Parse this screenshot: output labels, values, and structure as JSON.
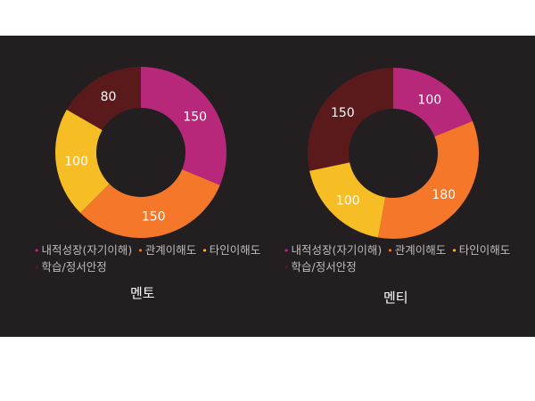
{
  "legend_labels": [
    "내적성장(자기이해)",
    "관계이해도",
    "타인이해도",
    "학습/정서안정"
  ],
  "colors": {
    "background": "#231f20",
    "slices": [
      "#b7287a",
      "#f5772a",
      "#f7bd24",
      "#5a1a1c"
    ]
  },
  "chart_data": [
    {
      "type": "pie",
      "variant": "donut",
      "title": "멘토",
      "categories": [
        "내적성장(자기이해)",
        "관계이해도",
        "타인이해도",
        "학습/정서안정"
      ],
      "values": [
        150,
        150,
        100,
        80
      ],
      "data_labels": [
        "150",
        "150",
        "100",
        "80"
      ]
    },
    {
      "type": "pie",
      "variant": "donut",
      "title": "멘티",
      "categories": [
        "내적성장(자기이해)",
        "관계이해도",
        "타인이해도",
        "학습/정서안정"
      ],
      "values": [
        100,
        180,
        100,
        150
      ],
      "data_labels": [
        "100",
        "180",
        "100",
        "150"
      ]
    }
  ]
}
